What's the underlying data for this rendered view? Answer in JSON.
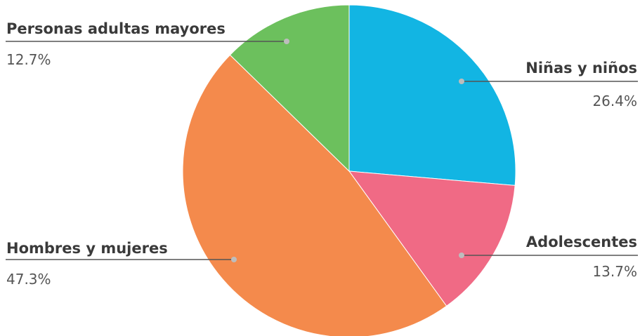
{
  "chart_data": {
    "type": "pie",
    "unit": "%",
    "slices": [
      {
        "name": "Niñas y niños",
        "value": 26.4,
        "label": "26.4%",
        "color": "#12b5e3"
      },
      {
        "name": "Adolescentes",
        "value": 13.7,
        "label": "13.7%",
        "color": "#f06a85"
      },
      {
        "name": "Hombres y mujeres",
        "value": 47.3,
        "label": "47.3%",
        "color": "#f48a4c"
      },
      {
        "name": "Personas adultas mayores",
        "value": 12.7,
        "label": "12.7%",
        "color": "#6cc05d"
      }
    ],
    "start": "12 o'clock, clockwise",
    "leader_line_color": "#555555",
    "marker_color": "#bdbdbd"
  }
}
